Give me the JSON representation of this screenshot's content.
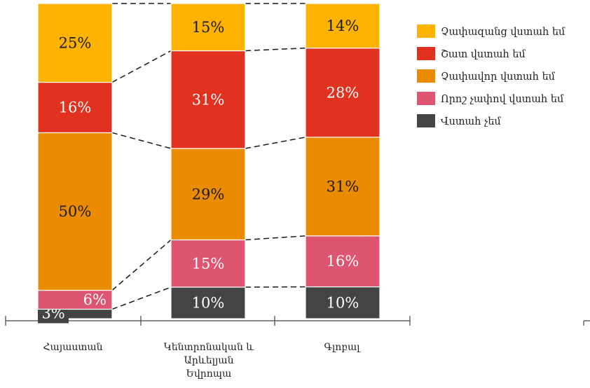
{
  "chart_data": {
    "type": "bar",
    "stacked": true,
    "normalized": true,
    "categories": [
      [
        "Հայաստան"
      ],
      [
        "Կենտրոնական և",
        "Արևելյան",
        "Եվրոպա"
      ],
      [
        "Գլոբալ"
      ]
    ],
    "series": [
      {
        "name": "Վստահ չեմ",
        "color": "#444444",
        "values": [
          3,
          10,
          10
        ]
      },
      {
        "name": "Որոշ չափով վստահ եմ",
        "color": "#dd5570",
        "values": [
          6,
          15,
          16
        ]
      },
      {
        "name": "Չափավոր վստահ եմ",
        "color": "#ea8b00",
        "values": [
          50,
          29,
          31
        ]
      },
      {
        "name": "Շատ վստահ եմ",
        "color": "#e0321f",
        "values": [
          16,
          31,
          28
        ]
      },
      {
        "name": "Չափազանց վստահ եմ",
        "color": "#fdb300",
        "values": [
          25,
          15,
          14
        ]
      }
    ],
    "value_suffix": "%",
    "legend_order": [
      "Չափազանց վստահ եմ",
      "Շատ վստահ եմ",
      "Չափավոր վստահ եմ",
      "Որոշ չափով վստահ եմ",
      "Վստահ չեմ"
    ],
    "legend_position": "right",
    "connectors": "dashed",
    "grid": false,
    "title": "",
    "xlabel": "",
    "ylabel": ""
  }
}
